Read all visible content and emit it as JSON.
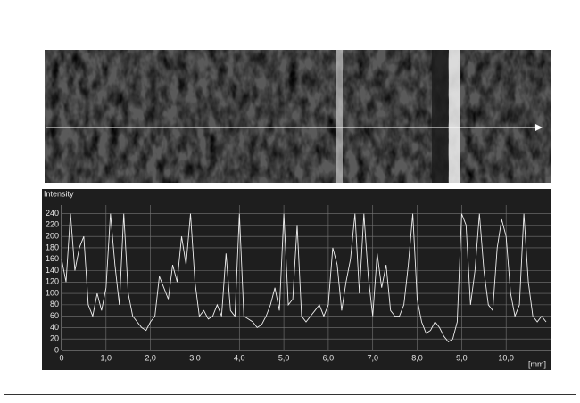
{
  "chart_data": {
    "type": "line",
    "ylabel": "Intensity",
    "xlabel": "[mm]",
    "x": [
      0,
      0.1,
      0.2,
      0.3,
      0.4,
      0.5,
      0.6,
      0.7,
      0.8,
      0.9,
      1,
      1.1,
      1.2,
      1.3,
      1.4,
      1.5,
      1.6,
      1.7,
      1.8,
      1.9,
      2,
      2.1,
      2.2,
      2.3,
      2.4,
      2.5,
      2.6,
      2.7,
      2.8,
      2.9,
      3,
      3.1,
      3.2,
      3.3,
      3.4,
      3.5,
      3.6,
      3.7,
      3.8,
      3.9,
      4,
      4.1,
      4.2,
      4.3,
      4.4,
      4.5,
      4.6,
      4.7,
      4.8,
      4.9,
      5,
      5.1,
      5.2,
      5.3,
      5.4,
      5.5,
      5.6,
      5.7,
      5.8,
      5.9,
      6,
      6.1,
      6.2,
      6.3,
      6.4,
      6.5,
      6.6,
      6.7,
      6.8,
      6.9,
      7,
      7.1,
      7.2,
      7.3,
      7.4,
      7.5,
      7.6,
      7.7,
      7.8,
      7.9,
      8,
      8.1,
      8.2,
      8.3,
      8.4,
      8.5,
      8.6,
      8.7,
      8.8,
      8.9,
      9,
      9.1,
      9.2,
      9.3,
      9.4,
      9.5,
      9.6,
      9.7,
      9.8,
      9.9,
      10,
      10.1,
      10.2,
      10.3,
      10.4,
      10.5,
      10.6,
      10.7,
      10.8,
      10.9
    ],
    "series": [
      {
        "color": "#f0f0f0",
        "values": [
          160,
          120,
          240,
          140,
          180,
          200,
          80,
          60,
          100,
          70,
          110,
          240,
          150,
          80,
          240,
          100,
          60,
          50,
          40,
          35,
          50,
          60,
          130,
          110,
          90,
          150,
          120,
          200,
          150,
          240,
          120,
          60,
          70,
          55,
          60,
          80,
          60,
          170,
          70,
          60,
          240,
          60,
          55,
          50,
          40,
          45,
          60,
          80,
          110,
          70,
          240,
          80,
          90,
          220,
          60,
          50,
          60,
          70,
          80,
          60,
          80,
          180,
          150,
          70,
          120,
          160,
          240,
          100,
          240,
          130,
          60,
          170,
          110,
          150,
          70,
          60,
          60,
          80,
          150,
          240,
          90,
          50,
          30,
          35,
          50,
          40,
          25,
          15,
          20,
          50,
          240,
          220,
          80,
          140,
          240,
          140,
          80,
          70,
          180,
          230,
          200,
          100,
          60,
          80,
          240,
          120,
          60,
          50,
          60,
          50
        ]
      }
    ],
    "xlim": [
      0,
      11
    ],
    "ylim": [
      0,
      255
    ],
    "xticks": [
      0,
      {
        "value": 1,
        "label": "1,0"
      },
      {
        "value": 2,
        "label": "2,0"
      },
      {
        "value": 3,
        "label": "3,0"
      },
      {
        "value": 4,
        "label": "4,0"
      },
      {
        "value": 5,
        "label": "5,0"
      },
      {
        "value": 6,
        "label": "6,0"
      },
      {
        "value": 7,
        "label": "7,0"
      },
      {
        "value": 8,
        "label": "8,0"
      },
      {
        "value": 9,
        "label": "9,0"
      },
      {
        "value": 10,
        "label": "10,0"
      }
    ],
    "yticks": [
      0,
      20,
      40,
      60,
      80,
      100,
      120,
      140,
      160,
      180,
      200,
      220,
      240
    ],
    "grid": true
  }
}
